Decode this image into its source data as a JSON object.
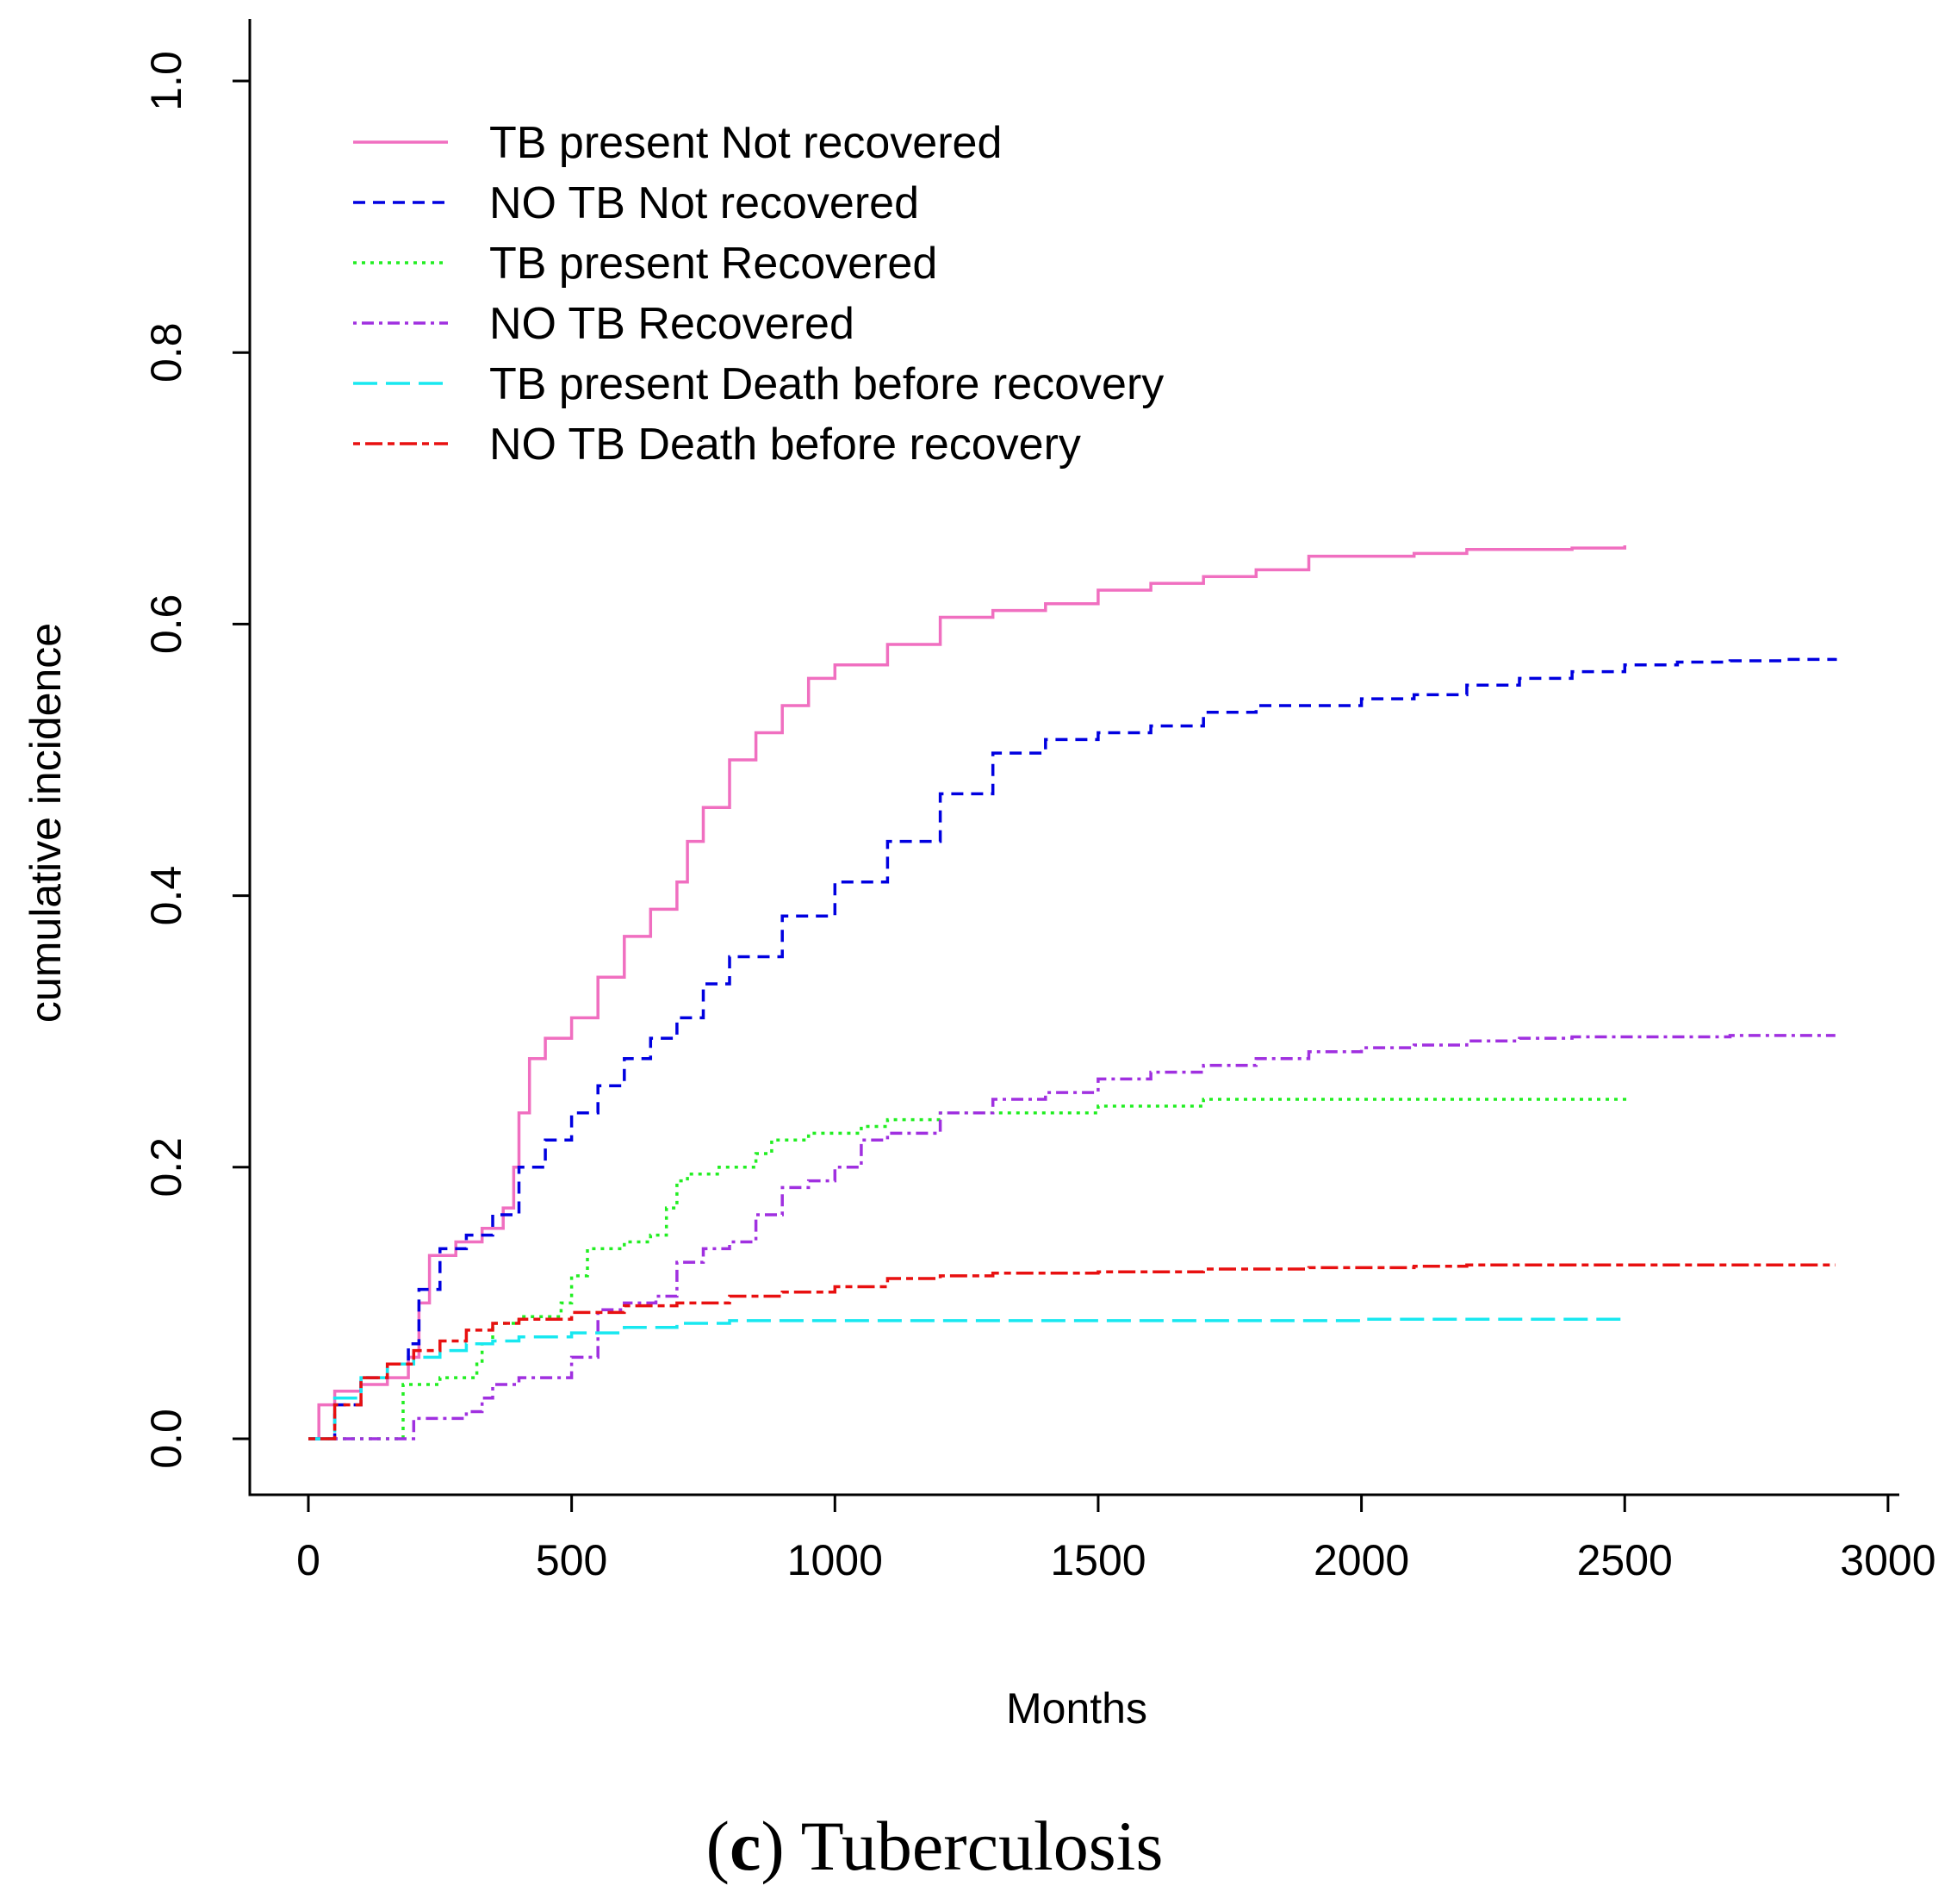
{
  "caption": {
    "open": "(",
    "letter": "c",
    "close": ")",
    "text": " Tuberculosis"
  },
  "chart_data": {
    "type": "line",
    "title": "",
    "xlabel": "Months",
    "ylabel": "cumulative incidence",
    "xlim": [
      0,
      3000
    ],
    "ylim": [
      0,
      1.0
    ],
    "x_ticks": [
      "0",
      "500",
      "1000",
      "1500",
      "2000",
      "2500",
      "3000"
    ],
    "y_ticks": [
      "0.0",
      "0.2",
      "0.4",
      "0.6",
      "0.8",
      "1.0"
    ],
    "grid": false,
    "legend_position": "top-left",
    "series": [
      {
        "name": "TB present Not recovered",
        "color": "#f06fc0",
        "dash": "solid",
        "x": [
          0,
          20,
          50,
          100,
          150,
          190,
          210,
          230,
          280,
          330,
          370,
          390,
          400,
          420,
          450,
          500,
          550,
          600,
          650,
          700,
          720,
          750,
          800,
          850,
          900,
          950,
          1000,
          1100,
          1200,
          1300,
          1400,
          1500,
          1600,
          1700,
          1800,
          1900,
          2000,
          2100,
          2200,
          2300,
          2400,
          2500
        ],
        "y": [
          0,
          0.025,
          0.035,
          0.04,
          0.045,
          0.06,
          0.1,
          0.135,
          0.145,
          0.155,
          0.17,
          0.2,
          0.24,
          0.28,
          0.295,
          0.31,
          0.34,
          0.37,
          0.39,
          0.41,
          0.44,
          0.465,
          0.5,
          0.52,
          0.54,
          0.56,
          0.57,
          0.585,
          0.605,
          0.61,
          0.615,
          0.625,
          0.63,
          0.635,
          0.64,
          0.65,
          0.65,
          0.652,
          0.655,
          0.655,
          0.656,
          0.658
        ]
      },
      {
        "name": "NO TB Not recovered",
        "color": "#0000e0",
        "dash": "dashed",
        "x": [
          0,
          50,
          100,
          150,
          190,
          210,
          250,
          300,
          350,
          400,
          450,
          500,
          550,
          600,
          650,
          700,
          750,
          800,
          900,
          1000,
          1100,
          1200,
          1300,
          1400,
          1500,
          1600,
          1700,
          1800,
          1900,
          2000,
          2100,
          2200,
          2300,
          2400,
          2500,
          2600,
          2700,
          2800,
          2900
        ],
        "y": [
          0,
          0.025,
          0.045,
          0.055,
          0.07,
          0.11,
          0.14,
          0.15,
          0.165,
          0.2,
          0.22,
          0.24,
          0.26,
          0.28,
          0.295,
          0.31,
          0.335,
          0.355,
          0.385,
          0.41,
          0.44,
          0.475,
          0.505,
          0.515,
          0.52,
          0.525,
          0.535,
          0.54,
          0.54,
          0.545,
          0.548,
          0.555,
          0.56,
          0.565,
          0.57,
          0.572,
          0.573,
          0.574,
          0.575
        ]
      },
      {
        "name": "TB present Recovered",
        "color": "#22ee22",
        "dash": "dotted",
        "x": [
          0,
          100,
          160,
          180,
          250,
          320,
          330,
          350,
          400,
          480,
          500,
          530,
          600,
          650,
          680,
          700,
          720,
          780,
          830,
          850,
          880,
          950,
          1000,
          1050,
          1100,
          1200,
          1300,
          1400,
          1500,
          1600,
          1700,
          1800,
          2000,
          2500
        ],
        "y": [
          0,
          0,
          0,
          0.04,
          0.045,
          0.055,
          0.07,
          0.085,
          0.09,
          0.1,
          0.12,
          0.14,
          0.145,
          0.15,
          0.17,
          0.19,
          0.195,
          0.2,
          0.2,
          0.21,
          0.22,
          0.225,
          0.225,
          0.23,
          0.235,
          0.24,
          0.24,
          0.24,
          0.245,
          0.245,
          0.25,
          0.25,
          0.25,
          0.253
        ]
      },
      {
        "name": "NO TB Recovered",
        "color": "#a030e0",
        "dash": "dashdot",
        "x": [
          0,
          100,
          160,
          200,
          300,
          330,
          350,
          400,
          500,
          550,
          600,
          660,
          700,
          750,
          800,
          850,
          900,
          950,
          1000,
          1050,
          1100,
          1200,
          1300,
          1400,
          1500,
          1600,
          1700,
          1800,
          1900,
          2000,
          2100,
          2200,
          2300,
          2400,
          2500,
          2600,
          2700,
          2800,
          2900
        ],
        "y": [
          0,
          0,
          0,
          0.015,
          0.02,
          0.03,
          0.04,
          0.045,
          0.06,
          0.095,
          0.1,
          0.105,
          0.13,
          0.14,
          0.145,
          0.165,
          0.185,
          0.19,
          0.2,
          0.22,
          0.225,
          0.24,
          0.25,
          0.255,
          0.265,
          0.27,
          0.275,
          0.28,
          0.285,
          0.288,
          0.29,
          0.293,
          0.295,
          0.296,
          0.296,
          0.296,
          0.297,
          0.297,
          0.297
        ]
      },
      {
        "name": "TB present Death before recovery",
        "color": "#18e8f0",
        "dash": "longdash",
        "x": [
          0,
          50,
          100,
          150,
          200,
          250,
          300,
          350,
          400,
          500,
          600,
          700,
          800,
          1000,
          1500,
          2000,
          2500
        ],
        "y": [
          0,
          0.03,
          0.045,
          0.055,
          0.06,
          0.065,
          0.07,
          0.072,
          0.075,
          0.078,
          0.082,
          0.085,
          0.087,
          0.087,
          0.087,
          0.088,
          0.088
        ]
      },
      {
        "name": "NO TB Death before recovery",
        "color": "#e81010",
        "dash": "twodash",
        "x": [
          0,
          50,
          100,
          150,
          200,
          250,
          300,
          350,
          400,
          500,
          600,
          700,
          800,
          900,
          1000,
          1100,
          1200,
          1300,
          1500,
          1700,
          1900,
          2100,
          2200,
          2500,
          2900
        ],
        "y": [
          0,
          0.025,
          0.045,
          0.055,
          0.065,
          0.072,
          0.08,
          0.085,
          0.088,
          0.093,
          0.098,
          0.1,
          0.105,
          0.108,
          0.112,
          0.118,
          0.12,
          0.122,
          0.123,
          0.125,
          0.126,
          0.127,
          0.128,
          0.128,
          0.128
        ]
      }
    ]
  }
}
